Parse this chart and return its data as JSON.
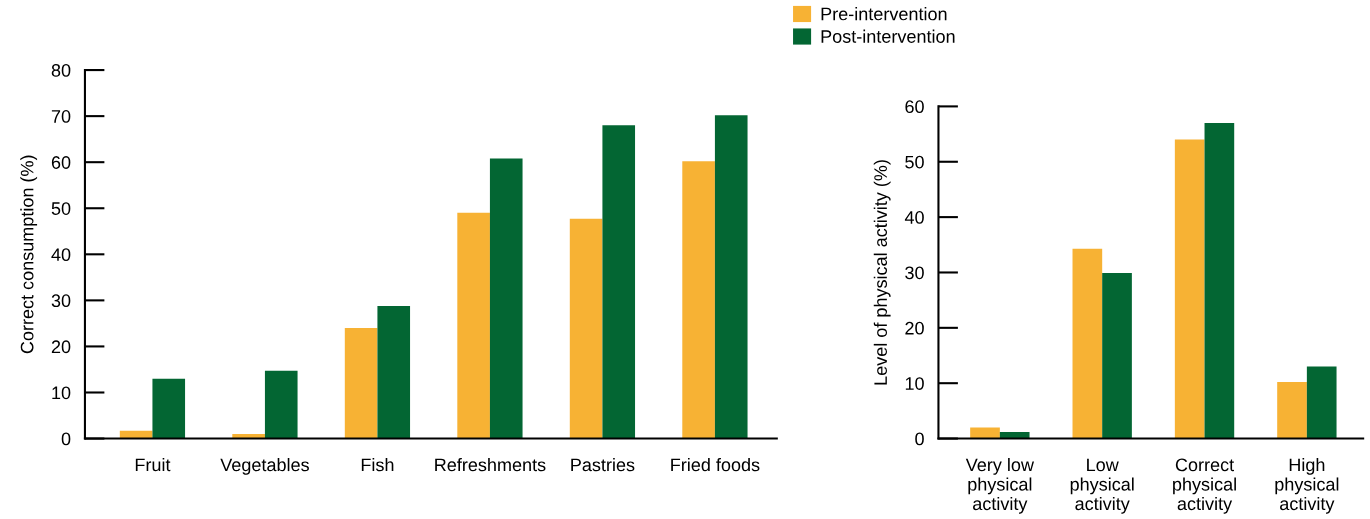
{
  "chart_data": [
    {
      "type": "bar",
      "ylabel": "Correct consumption (%)",
      "categories": [
        "Fruit",
        "Vegetables",
        "Fish",
        "Refreshments",
        "Pastries",
        "Fried foods"
      ],
      "series": [
        {
          "name": "Pre-intervention",
          "color": "#f7b234",
          "values": [
            1.7,
            1,
            24,
            49,
            47.7,
            60.2
          ]
        },
        {
          "name": "Post-intervention",
          "color": "#036633",
          "values": [
            13,
            14.7,
            28.8,
            60.8,
            68,
            70.2
          ]
        }
      ],
      "ylim": [
        0,
        80
      ],
      "yticks": [
        0,
        10,
        20,
        30,
        40,
        50,
        60,
        70,
        80
      ],
      "grid": false,
      "legend": "top right"
    },
    {
      "type": "bar",
      "ylabel": "Level of physical activity (%)",
      "categories": [
        "Very low\nphysical\nactivity",
        "Low\nphysical\nactivity",
        "Correct\nphysical\nactivity",
        "High\nphysical\nactivity"
      ],
      "series": [
        {
          "color": "#f7b234",
          "values": [
            2,
            34.3,
            54,
            10.2
          ]
        },
        {
          "color": "#036633",
          "values": [
            1.2,
            29.9,
            57,
            13
          ]
        }
      ],
      "ylim": [
        0,
        60
      ],
      "yticks": [
        0,
        10,
        20,
        30,
        40,
        50,
        60
      ],
      "grid": false
    }
  ]
}
